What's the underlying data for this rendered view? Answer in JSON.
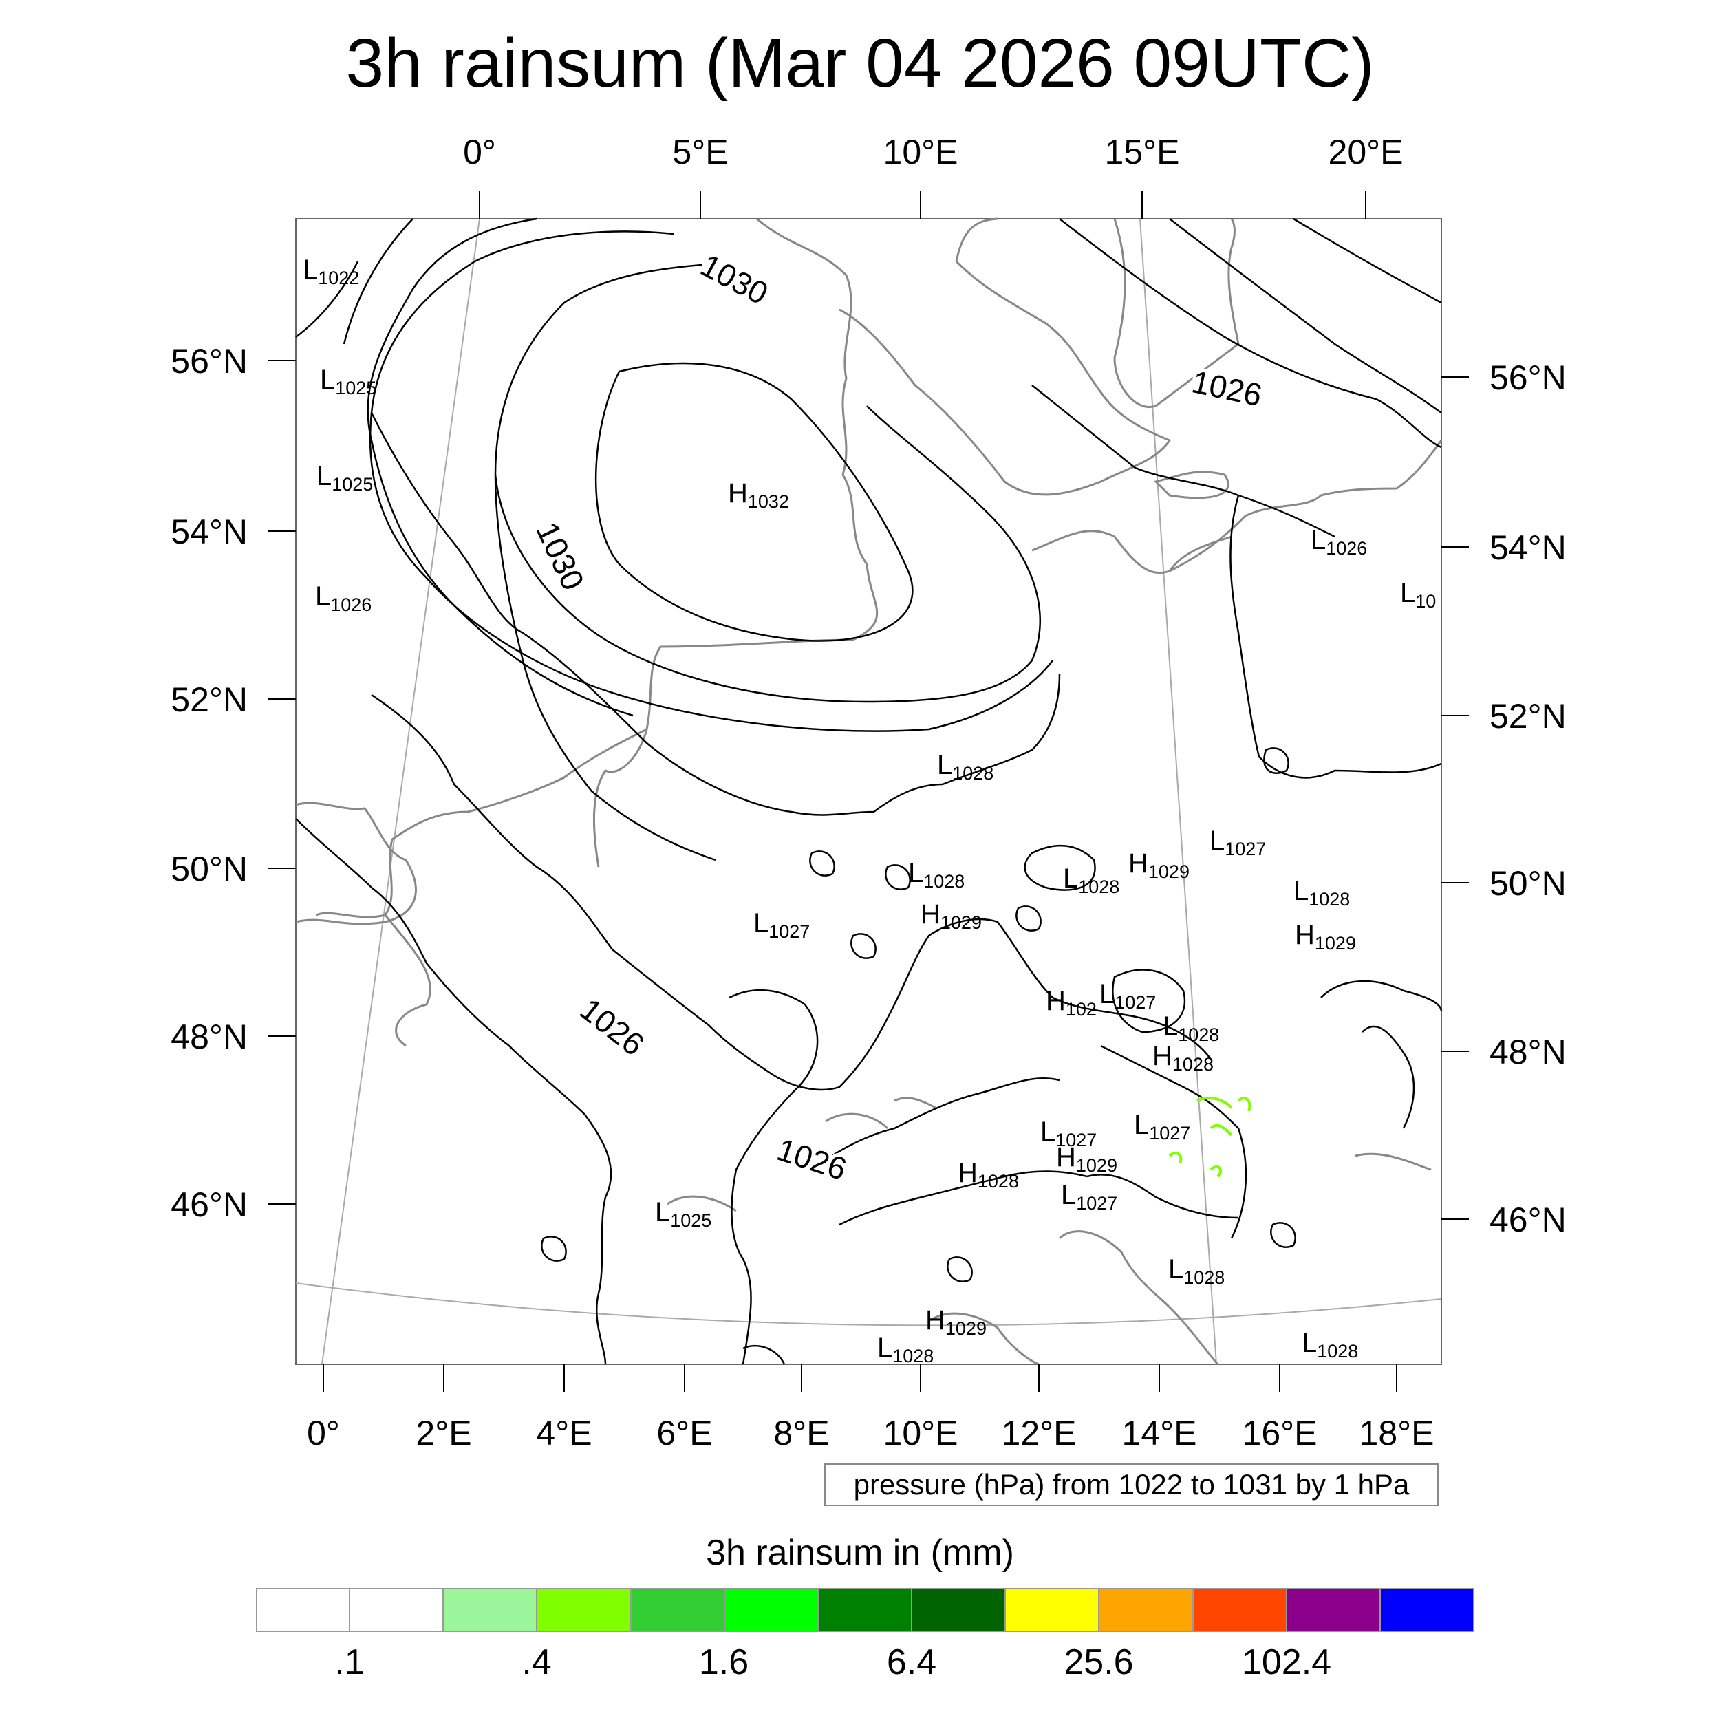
{
  "title": "3h rainsum (Mar 04 2026 09UTC)",
  "top_lon_labels": [
    "0°",
    "5°E",
    "10°E",
    "15°E",
    "20°E"
  ],
  "bottom_lon_labels": [
    "0°",
    "2°E",
    "4°E",
    "6°E",
    "8°E",
    "10°E",
    "12°E",
    "14°E",
    "16°E",
    "18°E"
  ],
  "left_lat_labels": [
    "56°N",
    "54°N",
    "52°N",
    "50°N",
    "48°N",
    "46°N"
  ],
  "right_lat_labels": [
    "56°N",
    "54°N",
    "52°N",
    "50°N",
    "48°N",
    "46°N"
  ],
  "isobar_labels": [
    "1030",
    "1030",
    "1026",
    "1026",
    "1026"
  ],
  "pressure_centers": [
    {
      "letter": "L",
      "value": "1022"
    },
    {
      "letter": "L",
      "value": "1025"
    },
    {
      "letter": "L",
      "value": "1025"
    },
    {
      "letter": "L",
      "value": "1026"
    },
    {
      "letter": "H",
      "value": "1032"
    },
    {
      "letter": "L",
      "value": "1026"
    },
    {
      "letter": "L",
      "value": "10"
    },
    {
      "letter": "L",
      "value": "1028"
    },
    {
      "letter": "L",
      "value": "1027"
    },
    {
      "letter": "L",
      "value": "1028"
    },
    {
      "letter": "L",
      "value": "1028"
    },
    {
      "letter": "H",
      "value": "1029"
    },
    {
      "letter": "L",
      "value": "1027"
    },
    {
      "letter": "L",
      "value": "1028"
    },
    {
      "letter": "H",
      "value": "1029"
    },
    {
      "letter": "H",
      "value": "1029"
    },
    {
      "letter": "H",
      "value": "102"
    },
    {
      "letter": "L",
      "value": "1027"
    },
    {
      "letter": "L",
      "value": "1028"
    },
    {
      "letter": "H",
      "value": "1028"
    },
    {
      "letter": "L",
      "value": "1027"
    },
    {
      "letter": "L",
      "value": "1027"
    },
    {
      "letter": "H",
      "value": "1029"
    },
    {
      "letter": "H",
      "value": "1028"
    },
    {
      "letter": "L",
      "value": "1027"
    },
    {
      "letter": "L",
      "value": "1025"
    },
    {
      "letter": "L",
      "value": "1028"
    },
    {
      "letter": "H",
      "value": "1029"
    },
    {
      "letter": "L",
      "value": "1028"
    },
    {
      "letter": "L",
      "value": "1028"
    }
  ],
  "legend_note": "pressure (hPa) from 1022 to 1031 by 1 hPa",
  "colorbar": {
    "title": "3h rainsum in (mm)",
    "colors": [
      "#ffffff",
      "#ffffff",
      "#9bf59b",
      "#80ff00",
      "#32cd32",
      "#00ff00",
      "#008000",
      "#006400",
      "#ffff00",
      "#ffa500",
      "#ff4500",
      "#8b008b",
      "#0000ff"
    ],
    "labels": [
      ".1",
      ".4",
      "1.6",
      "6.4",
      "25.6",
      "102.4"
    ]
  }
}
